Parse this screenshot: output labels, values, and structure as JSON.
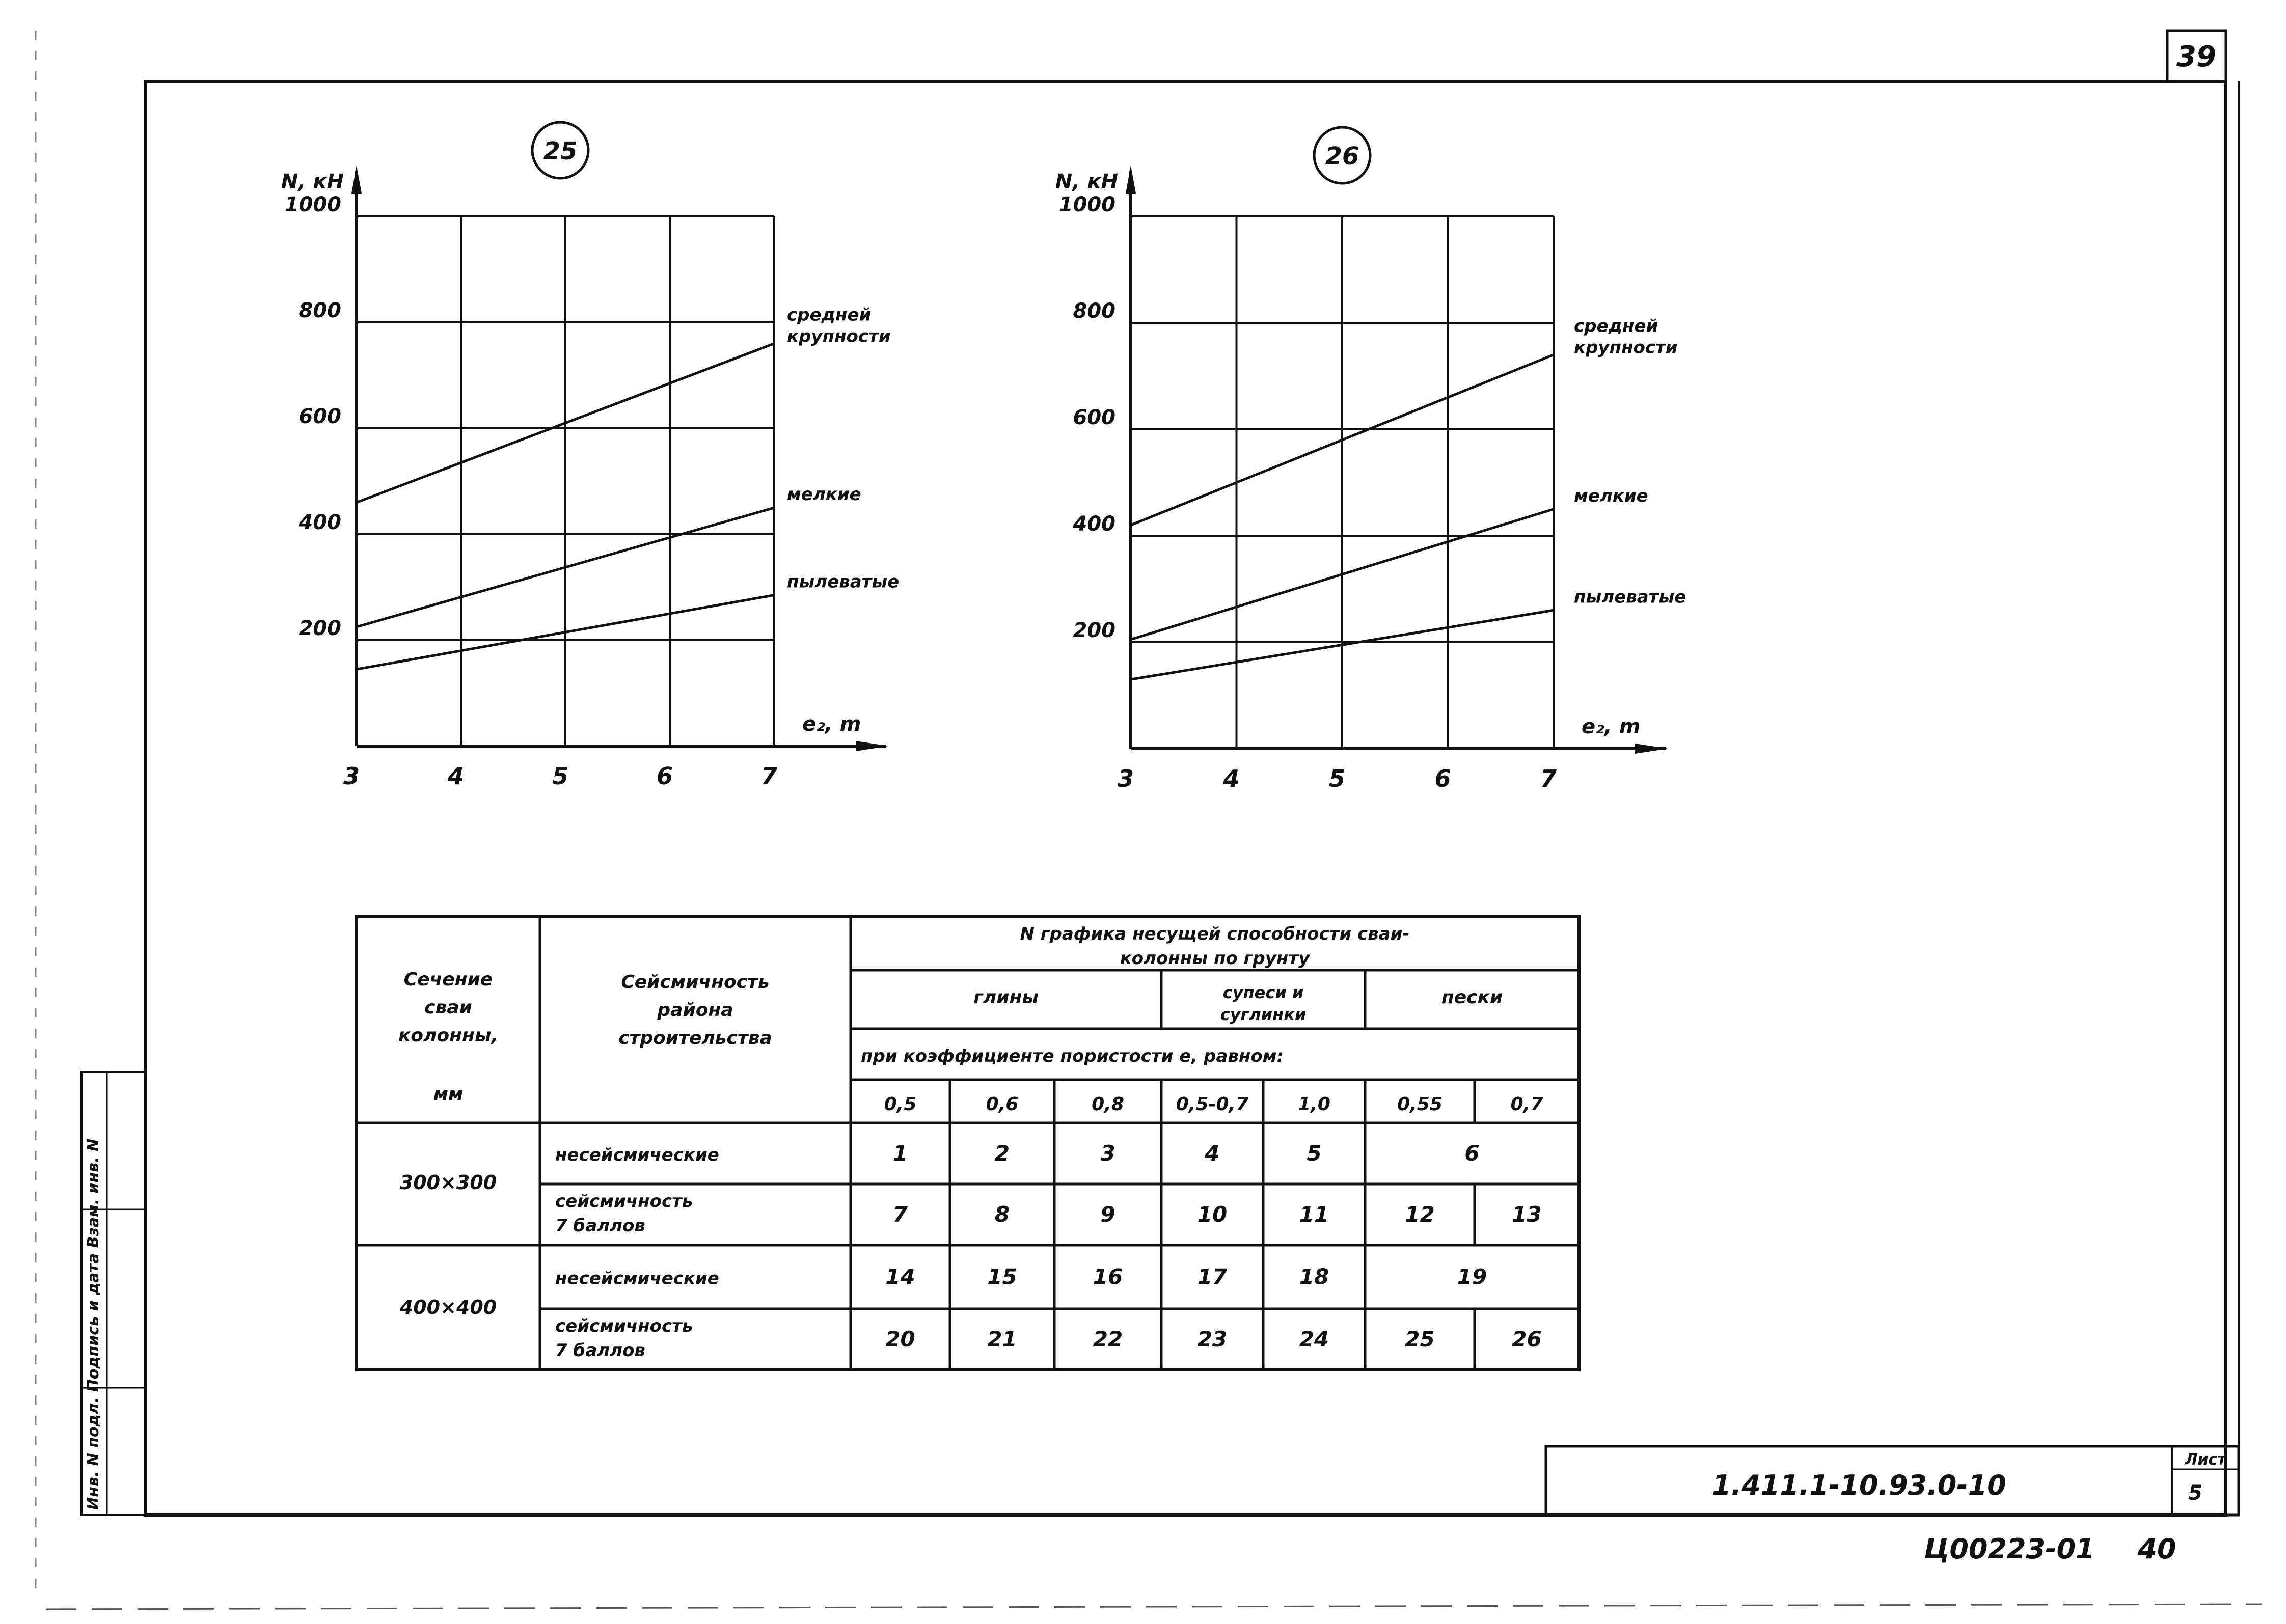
{
  "sheet": {
    "page_number": "39",
    "designation": "1.411.1-10.93.0-10",
    "sheet_label": "Лист",
    "sheet_number": "5",
    "archive_code": "Ц00223-01",
    "archive_page": "40",
    "side_stamp": "Инв. N подл. Подпись и дата Взам. инв. N"
  },
  "chart_data": [
    {
      "type": "line",
      "id": "25",
      "xlabel": "e₂, m",
      "ylabel": "N, кН",
      "x_ticks": [
        3,
        4,
        5,
        6,
        7
      ],
      "y_ticks": [
        200,
        400,
        600,
        800,
        1000
      ],
      "xlim": [
        3,
        7
      ],
      "ylim": [
        0,
        1000
      ],
      "grid": true,
      "series": [
        {
          "name": "средней крупности",
          "x": [
            3,
            7
          ],
          "y": [
            460,
            760
          ]
        },
        {
          "name": "мелкие",
          "x": [
            3,
            7
          ],
          "y": [
            225,
            450
          ]
        },
        {
          "name": "пылеватые",
          "x": [
            3,
            7
          ],
          "y": [
            145,
            285
          ]
        }
      ]
    },
    {
      "type": "line",
      "id": "26",
      "xlabel": "e₂, m",
      "ylabel": "N, кН",
      "x_ticks": [
        3,
        4,
        5,
        6,
        7
      ],
      "y_ticks": [
        200,
        400,
        600,
        800,
        1000
      ],
      "xlim": [
        3,
        7
      ],
      "ylim": [
        0,
        1000
      ],
      "grid": true,
      "series": [
        {
          "name": "средней крупности",
          "x": [
            3,
            7
          ],
          "y": [
            420,
            740
          ]
        },
        {
          "name": "мелкие",
          "x": [
            3,
            7
          ],
          "y": [
            205,
            450
          ]
        },
        {
          "name": "пылеватые",
          "x": [
            3,
            7
          ],
          "y": [
            130,
            260
          ]
        }
      ]
    }
  ],
  "table": {
    "h_section": [
      "Сечение",
      "сваи",
      "колонны,",
      "мм"
    ],
    "h_seismic": [
      "Сейсмичность",
      "района",
      "строительства"
    ],
    "h_graph": [
      "N графика несущей способности сваи-",
      "колонны по грунту"
    ],
    "h_soils": {
      "clay": "глины",
      "sandy": [
        "супеси и",
        "суглинки"
      ],
      "sand": "пески"
    },
    "h_coef": "при коэффициенте пористости e, равном:",
    "coef_values": [
      "0,5",
      "0,6",
      "0,8",
      "0,5-0,7",
      "1,0",
      "0,55",
      "0,7"
    ],
    "rows": [
      {
        "section": "300×300",
        "seismic": [
          "несейсмические"
        ],
        "cells": [
          "1",
          "2",
          "3",
          "4",
          "5"
        ],
        "sand": [
          "6"
        ]
      },
      {
        "section": "",
        "seismic": [
          "сейсмичность",
          "7 баллов"
        ],
        "cells": [
          "7",
          "8",
          "9",
          "10",
          "11"
        ],
        "sand": [
          "12",
          "13"
        ]
      },
      {
        "section": "400×400",
        "seismic": [
          "несейсмические"
        ],
        "cells": [
          "14",
          "15",
          "16",
          "17",
          "18"
        ],
        "sand": [
          "19"
        ]
      },
      {
        "section": "",
        "seismic": [
          "сейсмичность",
          "7 баллов"
        ],
        "cells": [
          "20",
          "21",
          "22",
          "23",
          "24"
        ],
        "sand": [
          "25",
          "26"
        ]
      }
    ]
  }
}
